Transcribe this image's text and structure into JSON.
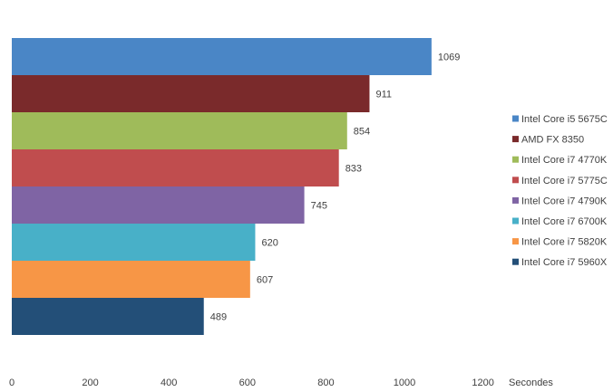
{
  "chart_data": {
    "type": "bar",
    "orientation": "horizontal",
    "title": "",
    "xlabel": "Secondes",
    "ylabel": "",
    "xlim": [
      0,
      1200
    ],
    "x_ticks": [
      0,
      200,
      400,
      600,
      800,
      1000,
      1200
    ],
    "grid": false,
    "legend_position": "right",
    "series": [
      {
        "name": "Intel Core i5 5675C",
        "value": 1069,
        "color": "#4a86c6"
      },
      {
        "name": "AMD FX 8350",
        "value": 911,
        "color": "#7a2a2b"
      },
      {
        "name": "Intel Core i7 4770K",
        "value": 854,
        "color": "#9fbb5a"
      },
      {
        "name": "Intel Core i7 5775C",
        "value": 833,
        "color": "#c04d4e"
      },
      {
        "name": "Intel Core i7 4790K",
        "value": 745,
        "color": "#7f64a4"
      },
      {
        "name": "Intel Core i7 6700K",
        "value": 620,
        "color": "#48b0c8"
      },
      {
        "name": "Intel Core i7 5820K",
        "value": 607,
        "color": "#f79646"
      },
      {
        "name": "Intel Core i7 5960X",
        "value": 489,
        "color": "#234f78"
      }
    ]
  }
}
